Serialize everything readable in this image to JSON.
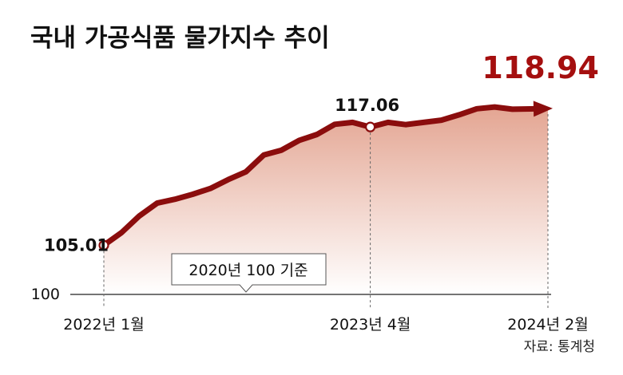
{
  "title": "국내 가공식품 물가지수 추이",
  "source": "자료: 통계청",
  "base_note": "2020년 100 기준",
  "colors": {
    "line": "#8b0d0d",
    "accent": "#a50f0f",
    "area": "#e2a08c"
  },
  "chart_data": {
    "type": "area",
    "title": "국내 가공식품 물가지수 추이",
    "xlabel": "",
    "ylabel": "",
    "x_ticks": [
      "2022년 1월",
      "2023년 4월",
      "2024년 2월"
    ],
    "y_ticks": [
      100
    ],
    "y_tick_labels": [
      "100"
    ],
    "ylim": [
      100,
      119.5
    ],
    "grid": false,
    "x": [
      "2022-01",
      "2022-02",
      "2022-03",
      "2022-04",
      "2022-05",
      "2022-06",
      "2022-07",
      "2022-08",
      "2022-09",
      "2022-10",
      "2022-11",
      "2022-12",
      "2023-01",
      "2023-02",
      "2023-03",
      "2023-04",
      "2023-05",
      "2023-06",
      "2023-07",
      "2023-08",
      "2023-09",
      "2023-10",
      "2023-11",
      "2023-12",
      "2024-01",
      "2024-02"
    ],
    "values": [
      105.01,
      106.3,
      108.0,
      109.3,
      109.7,
      110.2,
      110.8,
      111.7,
      112.5,
      114.2,
      114.7,
      115.7,
      116.3,
      117.33,
      117.53,
      117.06,
      117.53,
      117.3,
      117.53,
      117.76,
      118.3,
      118.92,
      119.1,
      118.87,
      118.9,
      118.94
    ],
    "annotations": [
      {
        "index": 0,
        "label": "105.01"
      },
      {
        "index": 15,
        "label": "117.06"
      },
      {
        "index": 25,
        "label": "118.94"
      }
    ]
  }
}
